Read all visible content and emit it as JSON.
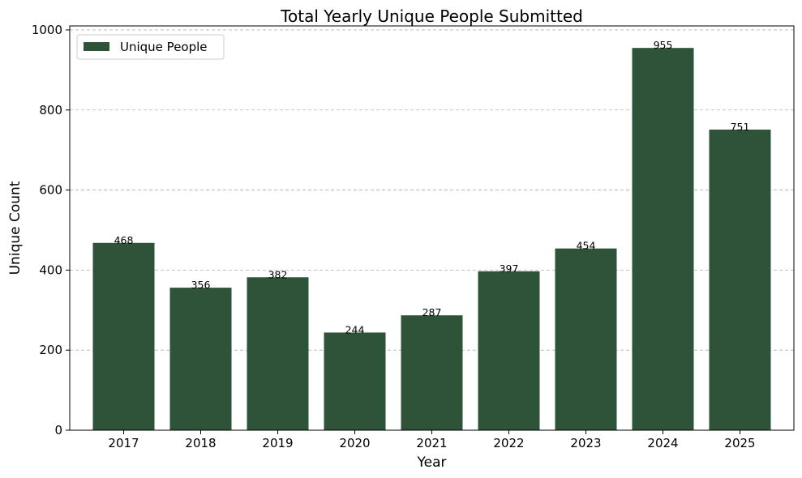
{
  "chart_data": {
    "type": "bar",
    "title": "Total Yearly Unique People Submitted",
    "xlabel": "Year",
    "ylabel": "Unique Count",
    "categories": [
      "2017",
      "2018",
      "2019",
      "2020",
      "2021",
      "2022",
      "2023",
      "2024",
      "2025"
    ],
    "series": [
      {
        "name": "Unique People",
        "values": [
          468,
          356,
          382,
          244,
          287,
          397,
          454,
          955,
          751
        ]
      }
    ],
    "ylim": [
      0,
      1000
    ],
    "yticks": [
      0,
      200,
      400,
      600,
      800,
      1000
    ],
    "grid": "y",
    "legend_position": "top-left",
    "bar_color": "#2e5339",
    "data_labels": true
  }
}
